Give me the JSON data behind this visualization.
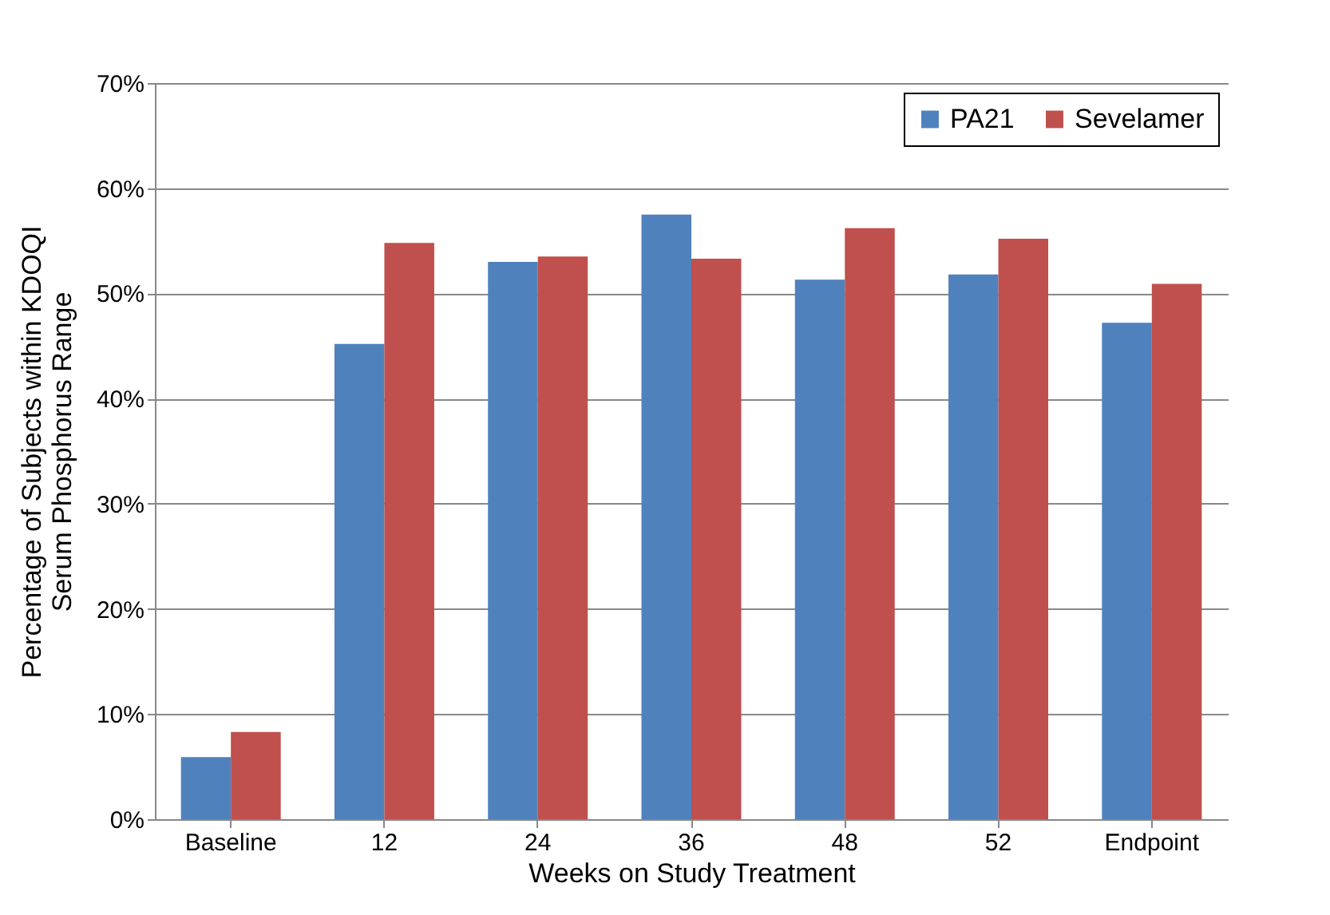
{
  "chart_data": {
    "type": "bar",
    "xlabel": "Weeks on Study Treatment",
    "ylabel": "Percentage of Subjects within KDOQI Serum Phosphorus Range",
    "categories": [
      "Baseline",
      "12",
      "24",
      "36",
      "48",
      "52",
      "Endpoint"
    ],
    "series": [
      {
        "name": "PA21",
        "color": "#4f81bd",
        "values": [
          5.9,
          45.2,
          53.0,
          57.5,
          51.3,
          51.8,
          47.2
        ]
      },
      {
        "name": "Sevelamer",
        "color": "#c0504d",
        "values": [
          8.3,
          54.8,
          53.5,
          53.3,
          56.2,
          55.2,
          50.9
        ]
      }
    ],
    "ylim": [
      0,
      70
    ],
    "yticks": [
      {
        "value": 0,
        "label": "0%"
      },
      {
        "value": 10,
        "label": "10%"
      },
      {
        "value": 20,
        "label": "20%"
      },
      {
        "value": 30,
        "label": "30%"
      },
      {
        "value": 40,
        "label": "40%"
      },
      {
        "value": 50,
        "label": "50%"
      },
      {
        "value": 60,
        "label": "60%"
      },
      {
        "value": 70,
        "label": "70%"
      }
    ],
    "grid": "y",
    "legend": "top right"
  }
}
